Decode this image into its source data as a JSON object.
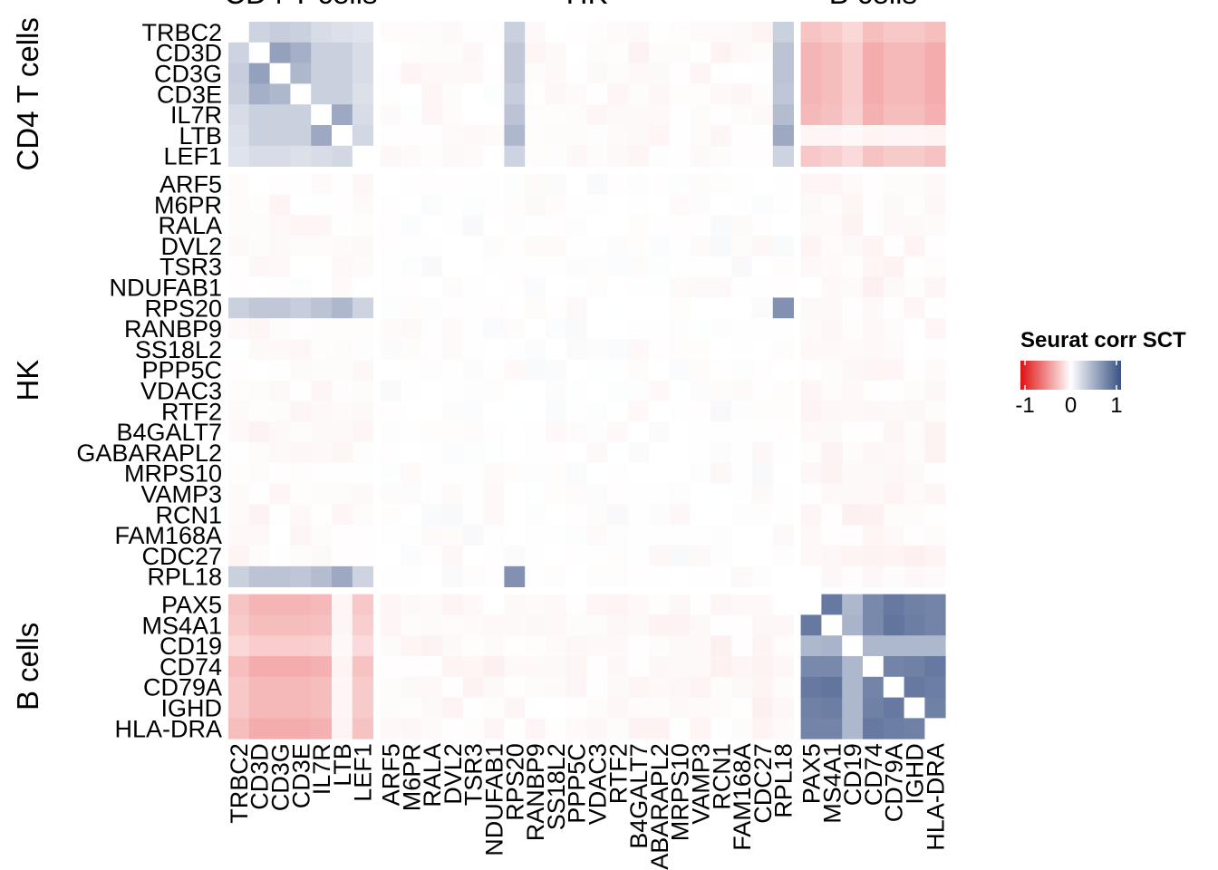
{
  "chart_data": {
    "type": "heatmap",
    "title": "",
    "legend": {
      "title": "Seurat corr SCT",
      "ticks": [
        "-1",
        "0",
        "1"
      ],
      "range": [
        -1.1,
        1.1
      ],
      "colors": {
        "low": "#e01010",
        "mid": "#ffffff",
        "high": "#3a5285"
      },
      "placement": "right"
    },
    "groups": [
      {
        "name": "CD4 T cells",
        "genes": [
          "TRBC2",
          "CD3D",
          "CD3G",
          "CD3E",
          "IL7R",
          "LTB",
          "LEF1"
        ]
      },
      {
        "name": "HK",
        "genes": [
          "ARF5",
          "M6PR",
          "RALA",
          "DVL2",
          "TSR3",
          "NDUFAB1",
          "RPS20",
          "RANBP9",
          "SS18L2",
          "PPP5C",
          "VDAC3",
          "RTF2",
          "B4GALT7",
          "GABARAPL2",
          "MRPS10",
          "VAMP3",
          "RCN1",
          "FAM168A",
          "CDC27",
          "RPL18"
        ]
      },
      {
        "name": "B cells",
        "genes": [
          "PAX5",
          "MS4A1",
          "CD19",
          "CD74",
          "CD79A",
          "IGHD",
          "HLA-DRA"
        ]
      }
    ],
    "approximate_values": {
      "T_T": [
        [
          0,
          0.28,
          0.32,
          0.3,
          0.22,
          0.2,
          0.18
        ],
        [
          0.28,
          0,
          0.6,
          0.5,
          0.3,
          0.3,
          0.22
        ],
        [
          0.32,
          0.6,
          0,
          0.45,
          0.3,
          0.3,
          0.22
        ],
        [
          0.3,
          0.5,
          0.45,
          0,
          0.3,
          0.3,
          0.2
        ],
        [
          0.22,
          0.3,
          0.3,
          0.3,
          0,
          0.55,
          0.22
        ],
        [
          0.2,
          0.3,
          0.3,
          0.3,
          0.55,
          0,
          0.25
        ],
        [
          0.18,
          0.22,
          0.22,
          0.2,
          0.22,
          0.25,
          0
        ]
      ],
      "T_B_by_T_gene": [
        -0.3,
        -0.38,
        -0.38,
        -0.38,
        -0.36,
        -0.05,
        -0.28
      ],
      "T_B_col_scale": [
        0.9,
        0.8,
        0.6,
        1.0,
        0.85,
        0.85,
        1.0
      ],
      "T_HK_RPS20": [
        0.3,
        0.35,
        0.35,
        0.32,
        0.38,
        0.45,
        0.28
      ],
      "T_HK_RPL18": [
        0.3,
        0.38,
        0.38,
        0.36,
        0.42,
        0.55,
        0.28
      ],
      "RPS20_RPL18": 0.7,
      "B_B": [
        [
          0,
          0.85,
          0.45,
          0.75,
          0.85,
          0.8,
          0.78
        ],
        [
          0.85,
          0,
          0.48,
          0.75,
          0.88,
          0.82,
          0.78
        ],
        [
          0.45,
          0.48,
          0,
          0.45,
          0.45,
          0.45,
          0.45
        ],
        [
          0.75,
          0.75,
          0.45,
          0,
          0.78,
          0.8,
          0.85
        ],
        [
          0.85,
          0.88,
          0.45,
          0.78,
          0,
          0.85,
          0.82
        ],
        [
          0.8,
          0.82,
          0.45,
          0.8,
          0.85,
          0,
          0.8
        ],
        [
          0.78,
          0.78,
          0.45,
          0.85,
          0.82,
          0.8,
          0
        ]
      ]
    }
  }
}
